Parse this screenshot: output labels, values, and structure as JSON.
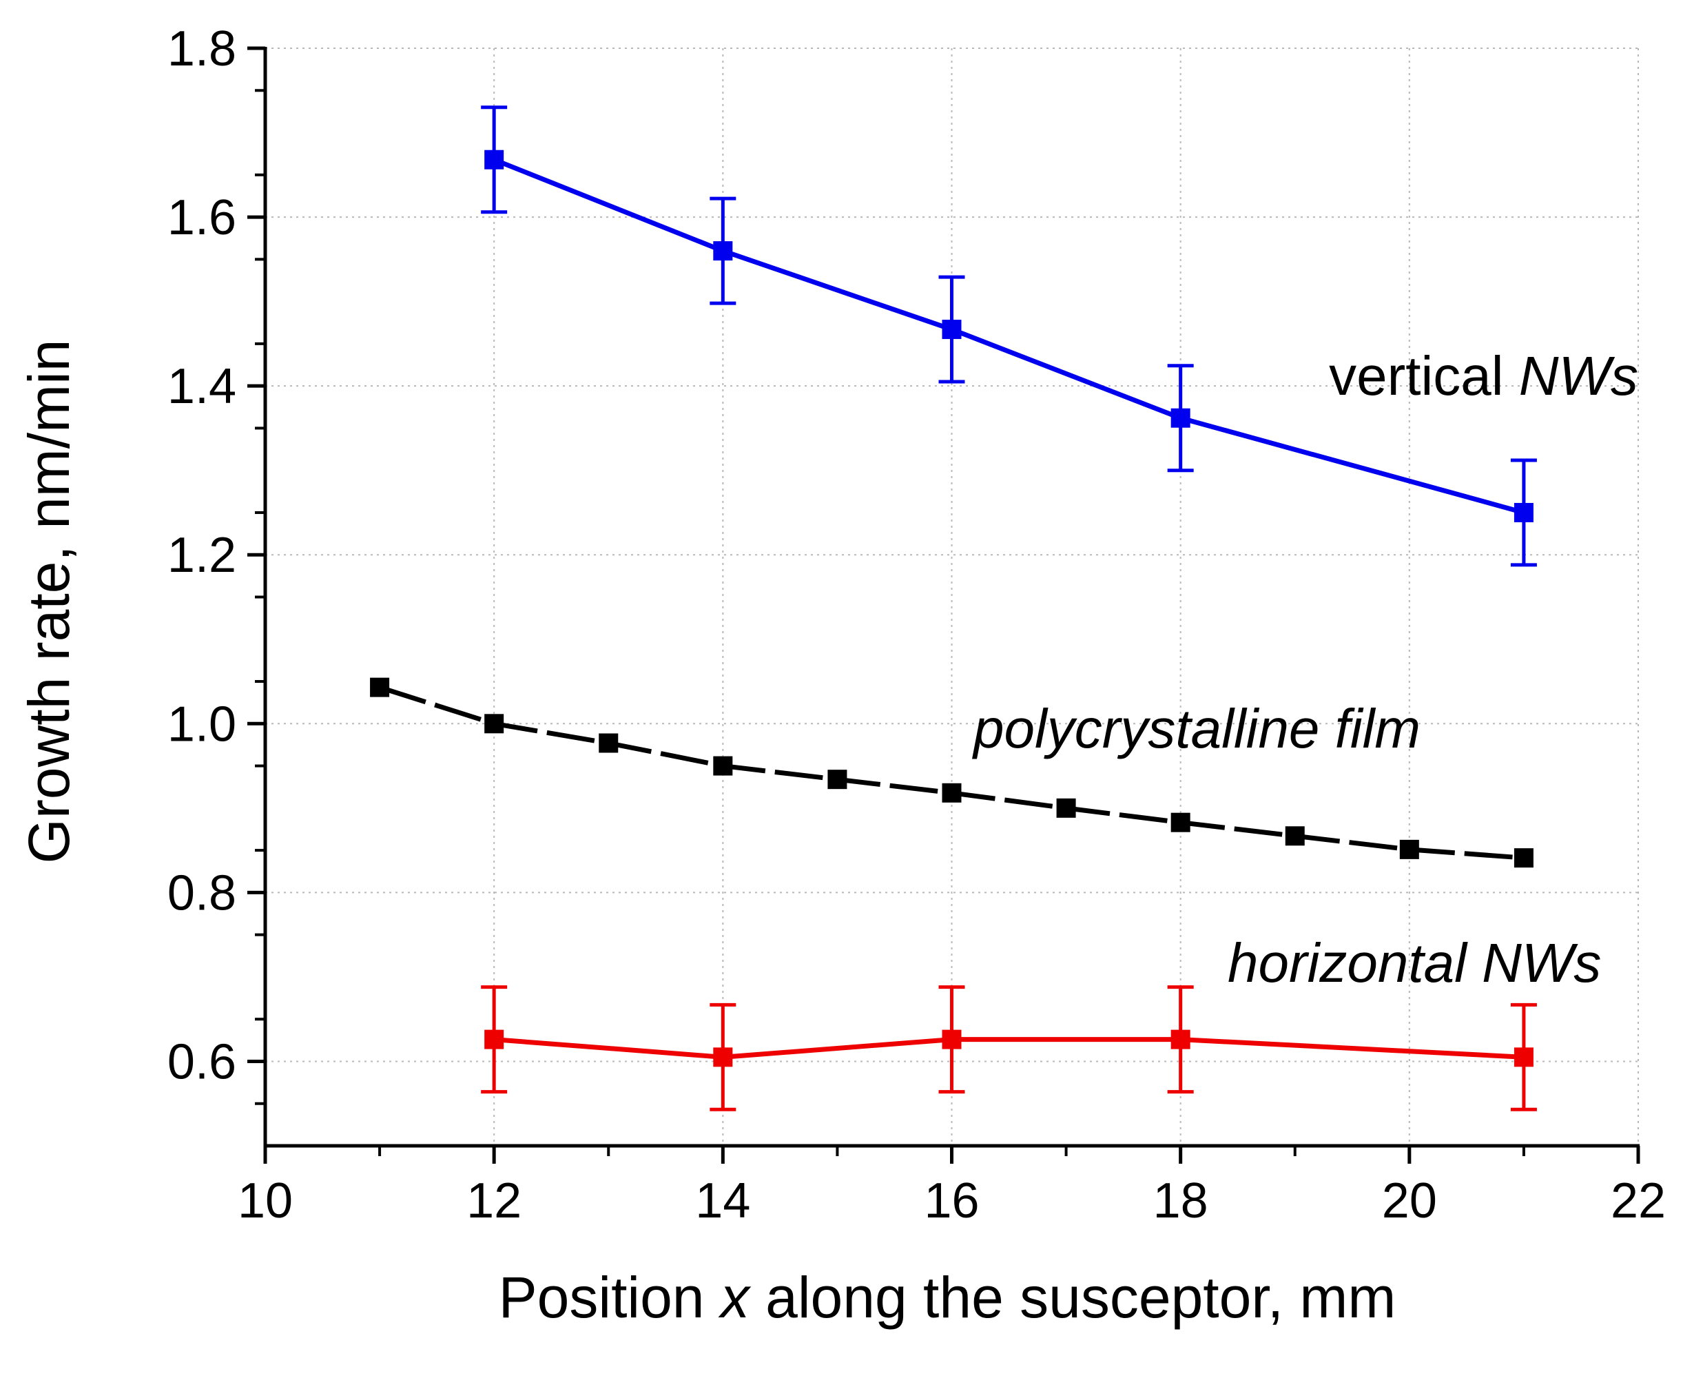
{
  "chart_data": {
    "type": "line",
    "title": "",
    "xlabel": {
      "prefix": "Position ",
      "var": "x",
      "suffix": " along the susceptor, mm"
    },
    "ylabel": "Growth rate, nm/min",
    "xlim": [
      10,
      22
    ],
    "ylim": [
      0.5,
      1.8
    ],
    "xticks": [
      10,
      12,
      14,
      16,
      18,
      20,
      22
    ],
    "xtick_labels": [
      "10",
      "12",
      "14",
      "16",
      "18",
      "20",
      "22"
    ],
    "yticks": [
      0.6,
      0.8,
      1.0,
      1.2,
      1.4,
      1.6,
      1.8
    ],
    "ytick_labels": [
      "0.6",
      "0.8",
      "1.0",
      "1.2",
      "1.4",
      "1.6",
      "1.8"
    ],
    "grid": true,
    "series": [
      {
        "id": "vertical",
        "label": {
          "plain": "vertical ",
          "italic": "NWs"
        },
        "color": "#0000ee",
        "dashed": false,
        "x": [
          12,
          14,
          16,
          18,
          21
        ],
        "values": [
          1.668,
          1.56,
          1.467,
          1.362,
          1.25
        ],
        "errors": [
          0.062,
          0.062,
          0.062,
          0.062,
          0.062
        ]
      },
      {
        "id": "polycrystalline",
        "label": {
          "plain": "",
          "italic": "polycrystalline film"
        },
        "color": "#000000",
        "dashed": true,
        "x": [
          11,
          12,
          13,
          14,
          15,
          16,
          17,
          18,
          19,
          20,
          21
        ],
        "values": [
          1.043,
          1.0,
          0.977,
          0.95,
          0.934,
          0.918,
          0.9,
          0.883,
          0.867,
          0.851,
          0.841
        ],
        "errors": null
      },
      {
        "id": "horizontal",
        "label": {
          "plain": "",
          "italic": "horizontal NWs"
        },
        "color": "#ee0000",
        "dashed": false,
        "x": [
          12,
          14,
          16,
          18,
          21
        ],
        "values": [
          0.626,
          0.605,
          0.626,
          0.626,
          0.605
        ],
        "errors": [
          0.062,
          0.062,
          0.062,
          0.062,
          0.062
        ]
      }
    ]
  }
}
